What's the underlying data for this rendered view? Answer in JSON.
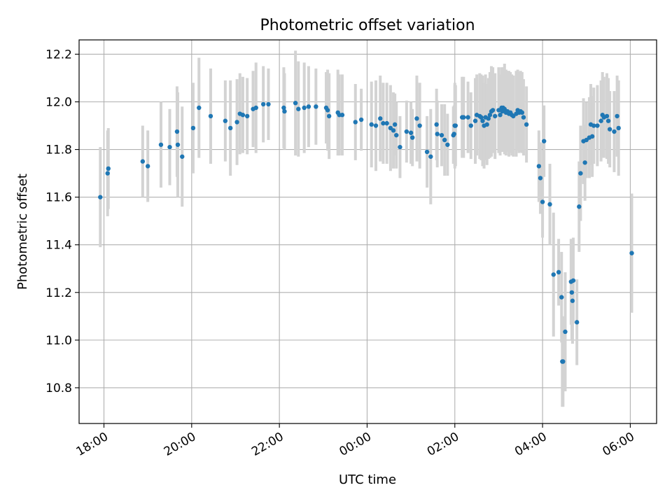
{
  "chart_data": {
    "type": "scatter",
    "title": "Photometric offset variation",
    "xlabel": "UTC time",
    "ylabel": "Photometric offset",
    "xlim": [
      "17:26",
      "06:36"
    ],
    "ylim": [
      10.65,
      12.26
    ],
    "grid": true,
    "x_ticks": [
      "18:00",
      "20:00",
      "22:00",
      "00:00",
      "02:00",
      "04:00",
      "06:00"
    ],
    "y_ticks": [
      "10.8",
      "11.0",
      "11.2",
      "11.4",
      "11.6",
      "11.8",
      "12.0",
      "12.2"
    ],
    "colors": {
      "point": "#1f77b4",
      "errorbar": "#d3d3d3",
      "grid": "#b0b0b0"
    },
    "series": [
      {
        "x": [
          "17:55",
          "18:05",
          "18:06",
          "18:53",
          "19:00",
          "19:18",
          "19:30",
          "19:40",
          "19:41",
          "19:47",
          "20:02",
          "20:10",
          "20:26",
          "20:46",
          "20:53",
          "21:02",
          "21:06",
          "21:10",
          "21:16",
          "21:24",
          "21:28",
          "21:38",
          "21:45",
          "22:06",
          "22:07",
          "22:22",
          "22:26",
          "22:34",
          "22:40",
          "22:50",
          "23:04",
          "23:06",
          "23:08",
          "23:20",
          "23:22",
          "23:26",
          "23:44",
          "23:52",
          "24:06",
          "24:12",
          "24:18",
          "24:22",
          "24:27",
          "24:32",
          "24:36",
          "24:38",
          "24:40",
          "24:45",
          "24:54",
          "25:00",
          "25:02",
          "25:08",
          "25:12",
          "25:22",
          "25:27",
          "25:35",
          "25:36",
          "25:42",
          "25:46",
          "25:50",
          "25:58",
          "25:59",
          "26:00",
          "26:00",
          "26:01",
          "26:10",
          "26:12",
          "26:18",
          "26:22",
          "26:28",
          "26:30",
          "26:34",
          "26:36",
          "26:38",
          "26:40",
          "26:42",
          "26:44",
          "26:46",
          "26:48",
          "26:50",
          "26:52",
          "26:55",
          "27:00",
          "27:02",
          "27:04",
          "27:05",
          "27:06",
          "27:08",
          "27:10",
          "27:12",
          "27:14",
          "27:16",
          "27:18",
          "27:20",
          "27:24",
          "27:26",
          "27:28",
          "27:30",
          "27:32",
          "27:34",
          "27:38",
          "27:55",
          "27:57",
          "28:00",
          "28:02",
          "28:10",
          "28:15",
          "28:22",
          "28:26",
          "28:27",
          "28:28",
          "28:31",
          "28:39",
          "28:40",
          "28:41",
          "28:42",
          "28:47",
          "28:50",
          "28:52",
          "28:56",
          "28:58",
          "29:00",
          "29:04",
          "29:06",
          "29:08",
          "29:10",
          "29:15",
          "29:20",
          "29:22",
          "29:24",
          "29:28",
          "29:30",
          "29:32",
          "29:38",
          "29:42",
          "29:44",
          "30:02"
        ],
        "y": [
          11.6,
          11.7,
          11.72,
          11.75,
          11.73,
          11.82,
          11.81,
          11.875,
          11.82,
          11.77,
          11.89,
          11.975,
          11.94,
          11.92,
          11.89,
          11.915,
          11.95,
          11.945,
          11.94,
          11.97,
          11.975,
          11.99,
          11.99,
          11.975,
          11.96,
          11.995,
          11.97,
          11.975,
          11.98,
          11.98,
          11.975,
          11.965,
          11.94,
          11.955,
          11.945,
          11.945,
          11.915,
          11.925,
          11.905,
          11.9,
          11.93,
          11.91,
          11.91,
          11.89,
          11.88,
          11.905,
          11.86,
          11.81,
          11.875,
          11.87,
          11.85,
          11.93,
          11.9,
          11.79,
          11.77,
          11.905,
          11.865,
          11.86,
          11.84,
          11.82,
          11.86,
          11.865,
          11.9,
          11.9,
          11.9,
          11.935,
          11.935,
          11.935,
          11.9,
          11.92,
          11.945,
          11.94,
          11.935,
          11.92,
          11.9,
          11.935,
          11.905,
          11.93,
          11.945,
          11.96,
          11.965,
          11.94,
          11.965,
          11.945,
          11.975,
          11.96,
          11.975,
          11.97,
          11.955,
          11.96,
          11.95,
          11.955,
          11.945,
          11.94,
          11.95,
          11.965,
          11.955,
          11.96,
          11.955,
          11.935,
          11.905,
          11.73,
          11.68,
          11.58,
          11.835,
          11.57,
          11.275,
          11.285,
          11.18,
          10.91,
          10.91,
          11.035,
          11.245,
          11.2,
          11.165,
          11.25,
          11.075,
          11.56,
          11.7,
          11.835,
          11.745,
          11.84,
          11.85,
          11.905,
          11.855,
          11.9,
          11.9,
          11.92,
          11.945,
          11.935,
          11.94,
          11.92,
          11.885,
          11.875,
          11.94,
          11.89,
          11.365
        ],
        "error": [
          0.21,
          0.18,
          0.17,
          0.15,
          0.15,
          0.18,
          0.16,
          0.19,
          0.22,
          0.21,
          0.19,
          0.21,
          0.2,
          0.17,
          0.2,
          0.18,
          0.17,
          0.16,
          0.16,
          0.16,
          0.19,
          0.16,
          0.15,
          0.17,
          0.16,
          0.22,
          0.2,
          0.19,
          0.17,
          0.16,
          0.15,
          0.17,
          0.18,
          0.18,
          0.17,
          0.17,
          0.16,
          0.13,
          0.18,
          0.19,
          0.18,
          0.17,
          0.17,
          0.18,
          0.16,
          0.13,
          0.14,
          0.13,
          0.13,
          0.13,
          0.12,
          0.18,
          0.18,
          0.15,
          0.2,
          0.15,
          0.14,
          0.13,
          0.15,
          0.13,
          0.12,
          0.12,
          0.18,
          0.17,
          0.17,
          0.17,
          0.17,
          0.15,
          0.14,
          0.18,
          0.17,
          0.18,
          0.18,
          0.19,
          0.18,
          0.18,
          0.17,
          0.17,
          0.18,
          0.19,
          0.18,
          0.18,
          0.18,
          0.17,
          0.17,
          0.17,
          0.17,
          0.19,
          0.18,
          0.17,
          0.18,
          0.17,
          0.17,
          0.17,
          0.18,
          0.17,
          0.17,
          0.17,
          0.17,
          0.16,
          0.16,
          0.15,
          0.15,
          0.15,
          0.15,
          0.17,
          0.26,
          0.14,
          0.19,
          0.19,
          0.19,
          0.25,
          0.18,
          0.2,
          0.18,
          0.18,
          0.18,
          0.19,
          0.2,
          0.18,
          0.16,
          0.16,
          0.17,
          0.17,
          0.17,
          0.16,
          0.17,
          0.17,
          0.18,
          0.17,
          0.18,
          0.18,
          0.16,
          0.17,
          0.17,
          0.2,
          0.25
        ]
      }
    ]
  }
}
